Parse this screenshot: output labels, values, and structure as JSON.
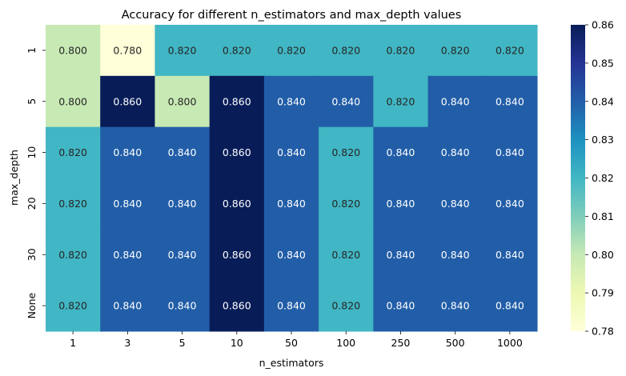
{
  "chart_data": {
    "type": "heatmap",
    "title": "Accuracy for different n_estimators and max_depth values",
    "xlabel": "n_estimators",
    "ylabel": "max_depth",
    "x_categories": [
      "1",
      "3",
      "5",
      "10",
      "50",
      "100",
      "250",
      "500",
      "1000"
    ],
    "y_categories": [
      "1",
      "5",
      "10",
      "20",
      "30",
      "None"
    ],
    "values": [
      [
        0.8,
        0.78,
        0.82,
        0.82,
        0.82,
        0.82,
        0.82,
        0.82,
        0.82
      ],
      [
        0.8,
        0.86,
        0.8,
        0.86,
        0.84,
        0.84,
        0.82,
        0.84,
        0.84
      ],
      [
        0.82,
        0.84,
        0.84,
        0.86,
        0.84,
        0.82,
        0.84,
        0.84,
        0.84
      ],
      [
        0.82,
        0.84,
        0.84,
        0.86,
        0.84,
        0.82,
        0.84,
        0.84,
        0.84
      ],
      [
        0.82,
        0.84,
        0.84,
        0.86,
        0.84,
        0.82,
        0.84,
        0.84,
        0.84
      ],
      [
        0.82,
        0.84,
        0.84,
        0.86,
        0.84,
        0.82,
        0.84,
        0.84,
        0.84
      ]
    ],
    "value_format": "0.000",
    "colormap": "YlGnBu",
    "vmin": 0.78,
    "vmax": 0.86,
    "colorbar_ticks": [
      "0.78",
      "0.79",
      "0.80",
      "0.81",
      "0.82",
      "0.83",
      "0.84",
      "0.85",
      "0.86"
    ],
    "colorbar_position": "right",
    "grid": false,
    "colormap_stops": [
      "#ffffd9",
      "#edf8b1",
      "#c7e9b4",
      "#7fcdbb",
      "#41b6c4",
      "#1d91c0",
      "#225ea8",
      "#253494",
      "#081d58"
    ]
  }
}
